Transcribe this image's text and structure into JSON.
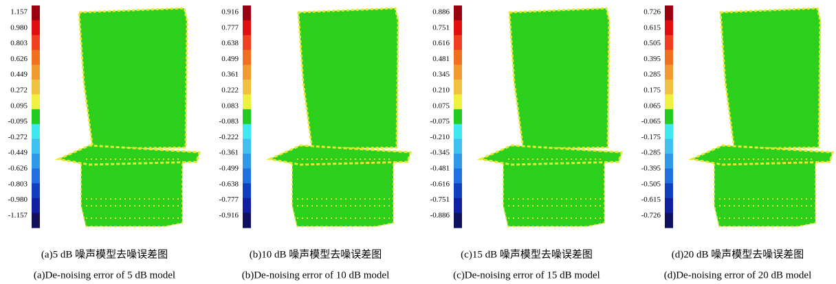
{
  "panels": [
    {
      "scale_labels": [
        "1.157",
        "0.980",
        "0.803",
        "0.626",
        "0.449",
        "0.272",
        "0.095",
        "-0.095",
        "-0.272",
        "-0.449",
        "-0.626",
        "-0.803",
        "-0.980",
        "-1.157"
      ],
      "caption_cn": "(a)5 dB 噪声模型去噪误差图",
      "caption_en": "(a)De-noising error of 5 dB model"
    },
    {
      "scale_labels": [
        "0.916",
        "0.777",
        "0.638",
        "0.499",
        "0.361",
        "0.222",
        "0.083",
        "-0.083",
        "-0.222",
        "-0.361",
        "-0.499",
        "-0.638",
        "-0.777",
        "-0.916"
      ],
      "caption_cn": "(b)10 dB 噪声模型去噪误差图",
      "caption_en": "(b)De-noising error of 10 dB model"
    },
    {
      "scale_labels": [
        "0.886",
        "0.751",
        "0.616",
        "0.481",
        "0.345",
        "0.210",
        "0.075",
        "-0.075",
        "-0.210",
        "-0.345",
        "-0.481",
        "-0.616",
        "-0.751",
        "-0.886"
      ],
      "caption_cn": "(c)15 dB 噪声模型去噪误差图",
      "caption_en": "(c)De-noising error of 15 dB model"
    },
    {
      "scale_labels": [
        "0.726",
        "0.615",
        "0.505",
        "0.395",
        "0.285",
        "0.175",
        "0.065",
        "-0.065",
        "-0.175",
        "-0.285",
        "-0.395",
        "-0.505",
        "-0.615",
        "-0.726"
      ],
      "caption_cn": "(d)20 dB 噪声模型去噪误差图",
      "caption_en": "(d)De-noising error of 20 dB model"
    }
  ]
}
